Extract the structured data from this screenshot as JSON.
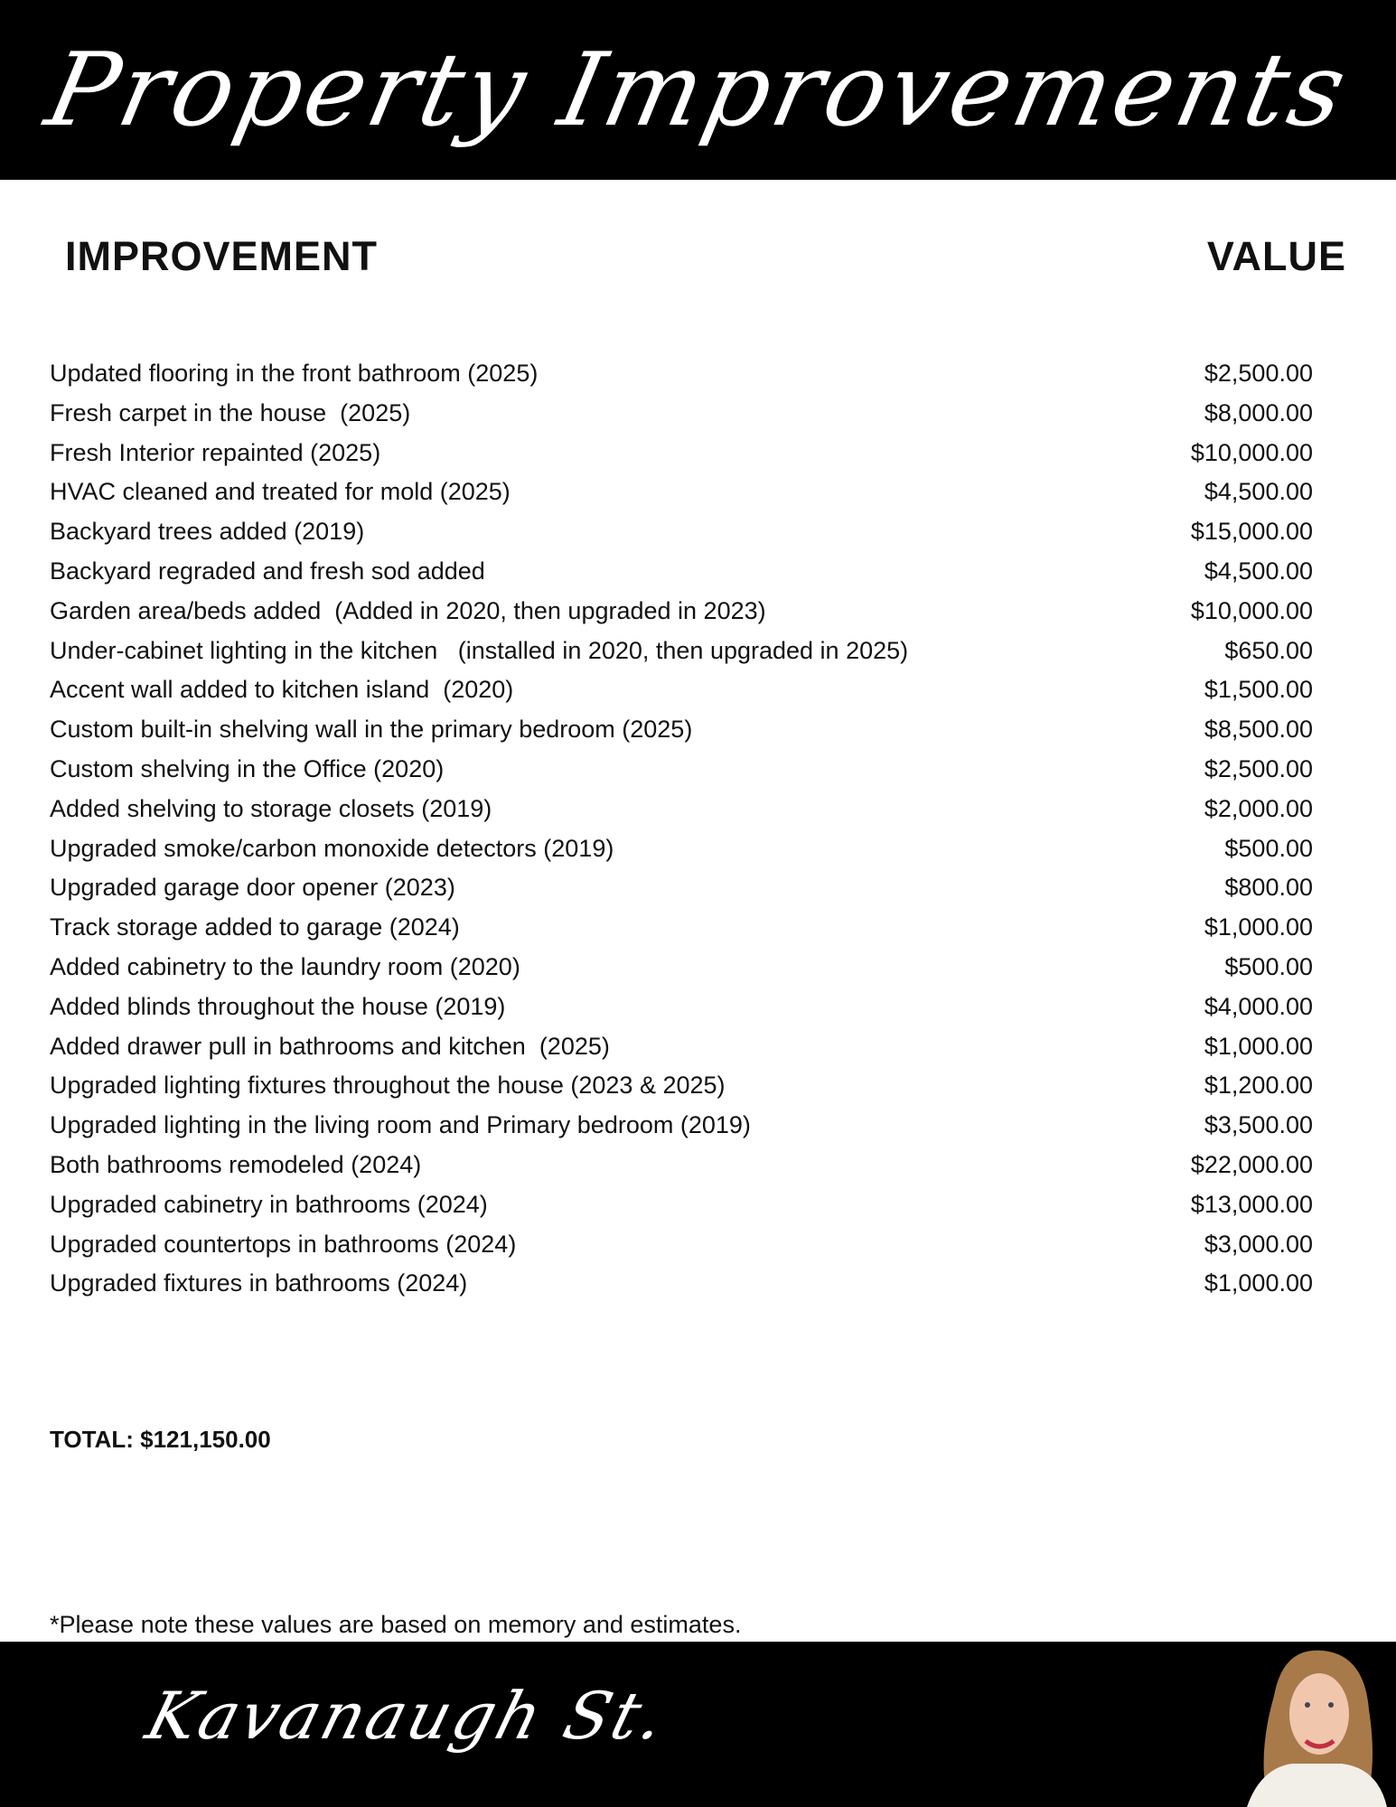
{
  "header": {
    "title": "Property Improvements"
  },
  "columns": {
    "improvement": "IMPROVEMENT",
    "value": "VALUE"
  },
  "items": [
    {
      "name": "Updated flooring in the front bathroom (2025)",
      "value": "$2,500.00"
    },
    {
      "name": "Fresh carpet in the house  (2025)",
      "value": "$8,000.00"
    },
    {
      "name": "Fresh Interior repainted (2025)",
      "value": "$10,000.00"
    },
    {
      "name": "HVAC cleaned and treated for mold (2025)",
      "value": "$4,500.00"
    },
    {
      "name": "Backyard trees added (2019)",
      "value": "$15,000.00"
    },
    {
      "name": "Backyard regraded and fresh sod added",
      "value": "$4,500.00"
    },
    {
      "name": "Garden area/beds added  (Added in 2020, then upgraded in 2023)",
      "value": "$10,000.00"
    },
    {
      "name": "Under-cabinet lighting in the kitchen   (installed in 2020, then upgraded in 2025)",
      "value": "$650.00"
    },
    {
      "name": "Accent wall added to kitchen island  (2020)",
      "value": "$1,500.00"
    },
    {
      "name": "Custom built-in shelving wall in the primary bedroom (2025)",
      "value": "$8,500.00"
    },
    {
      "name": "Custom shelving in the Office (2020)",
      "value": "$2,500.00"
    },
    {
      "name": "Added shelving to storage closets (2019)",
      "value": "$2,000.00"
    },
    {
      "name": "Upgraded smoke/carbon monoxide detectors (2019)",
      "value": "$500.00"
    },
    {
      "name": "Upgraded garage door opener (2023)",
      "value": "$800.00"
    },
    {
      "name": "Track storage added to garage (2024)",
      "value": "$1,000.00"
    },
    {
      "name": "Added cabinetry to the laundry room (2020)",
      "value": "$500.00"
    },
    {
      "name": "Added blinds throughout the house (2019)",
      "value": "$4,000.00"
    },
    {
      "name": "Added drawer pull in bathrooms and kitchen  (2025)",
      "value": "$1,000.00"
    },
    {
      "name": "Upgraded lighting fixtures throughout the house (2023 & 2025)",
      "value": "$1,200.00"
    },
    {
      "name": "Upgraded lighting in the living room and Primary bedroom (2019)",
      "value": "$3,500.00"
    },
    {
      "name": "Both bathrooms remodeled (2024)",
      "value": "$22,000.00"
    },
    {
      "name": "Upgraded cabinetry in bathrooms (2024)",
      "value": "$13,000.00"
    },
    {
      "name": "Upgraded countertops in bathrooms (2024)",
      "value": "$3,000.00"
    },
    {
      "name": "Upgraded fixtures in bathrooms (2024)",
      "value": "$1,000.00"
    }
  ],
  "total": "TOTAL: $121,150.00",
  "note": "*Please note these values are based on memory and estimates.",
  "footer": {
    "signature": "Kavanaugh St.",
    "photo": "agent-portrait"
  },
  "colors": {
    "band": "#000000",
    "text": "#111111"
  }
}
